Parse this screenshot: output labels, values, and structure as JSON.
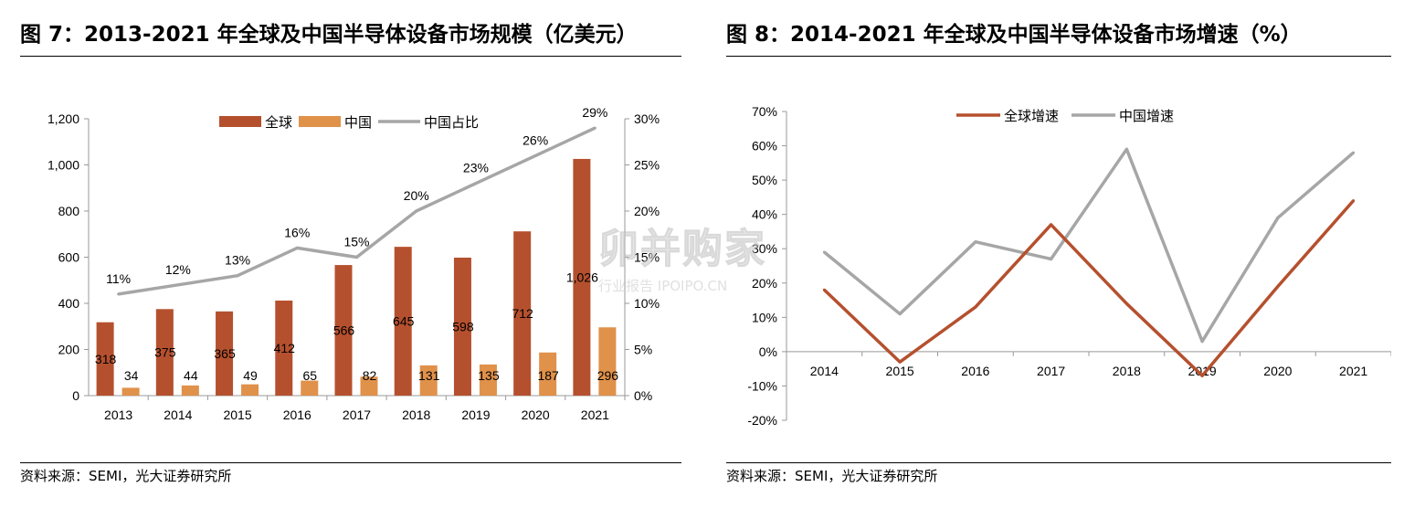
{
  "left": {
    "title": "图 7：2013-2021 年全球及中国半导体设备市场规模（亿美元）",
    "source": "资料来源：SEMI，光大证券研究所"
  },
  "right": {
    "title": "图 8：2014-2021 年全球及中国半导体设备市场增速（%）",
    "source": "资料来源：SEMI，光大证券研究所"
  },
  "watermark": {
    "main": "卯并购家",
    "sub": "行业报告 IPOIPO.CN"
  },
  "colors": {
    "global": "#B5502E",
    "china": "#E0914A",
    "share": "#A6A6A6"
  },
  "chart_data": [
    {
      "type": "bar",
      "categories": [
        "2013",
        "2014",
        "2015",
        "2016",
        "2017",
        "2018",
        "2019",
        "2020",
        "2021"
      ],
      "series": [
        {
          "name": "全球",
          "values": [
            318,
            375,
            365,
            412,
            566,
            645,
            598,
            712,
            1026
          ],
          "labels": [
            "318",
            "375",
            "365",
            "412",
            "566",
            "645",
            "598",
            "712",
            "1,026"
          ]
        },
        {
          "name": "中国",
          "values": [
            34,
            44,
            49,
            65,
            82,
            131,
            135,
            187,
            296
          ],
          "labels": [
            "34",
            "44",
            "49",
            "65",
            "82",
            "131",
            "135",
            "187",
            "296"
          ]
        },
        {
          "name": "中国占比",
          "axis": "right",
          "values": [
            11,
            12,
            13,
            16,
            15,
            20,
            23,
            26,
            29
          ],
          "labels": [
            "11%",
            "12%",
            "13%",
            "16%",
            "15%",
            "20%",
            "23%",
            "26%",
            "29%"
          ]
        }
      ],
      "ylim": [
        0,
        1200
      ],
      "yticks": [
        "0",
        "200",
        "400",
        "600",
        "800",
        "1,000",
        "1,200"
      ],
      "y2lim": [
        0,
        30
      ],
      "y2ticks": [
        "0%",
        "5%",
        "10%",
        "15%",
        "20%",
        "25%",
        "30%"
      ],
      "legend": "top"
    },
    {
      "type": "line",
      "categories": [
        "2014",
        "2015",
        "2016",
        "2017",
        "2018",
        "2019",
        "2020",
        "2021"
      ],
      "series": [
        {
          "name": "全球增速",
          "values": [
            18,
            -3,
            13,
            37,
            14,
            -7,
            19,
            44
          ]
        },
        {
          "name": "中国增速",
          "values": [
            29,
            11,
            32,
            27,
            59,
            3,
            39,
            58
          ]
        }
      ],
      "ylim": [
        -20,
        70
      ],
      "yticks": [
        "-20%",
        "-10%",
        "0%",
        "10%",
        "20%",
        "30%",
        "40%",
        "50%",
        "60%",
        "70%"
      ],
      "legend": "top"
    }
  ]
}
